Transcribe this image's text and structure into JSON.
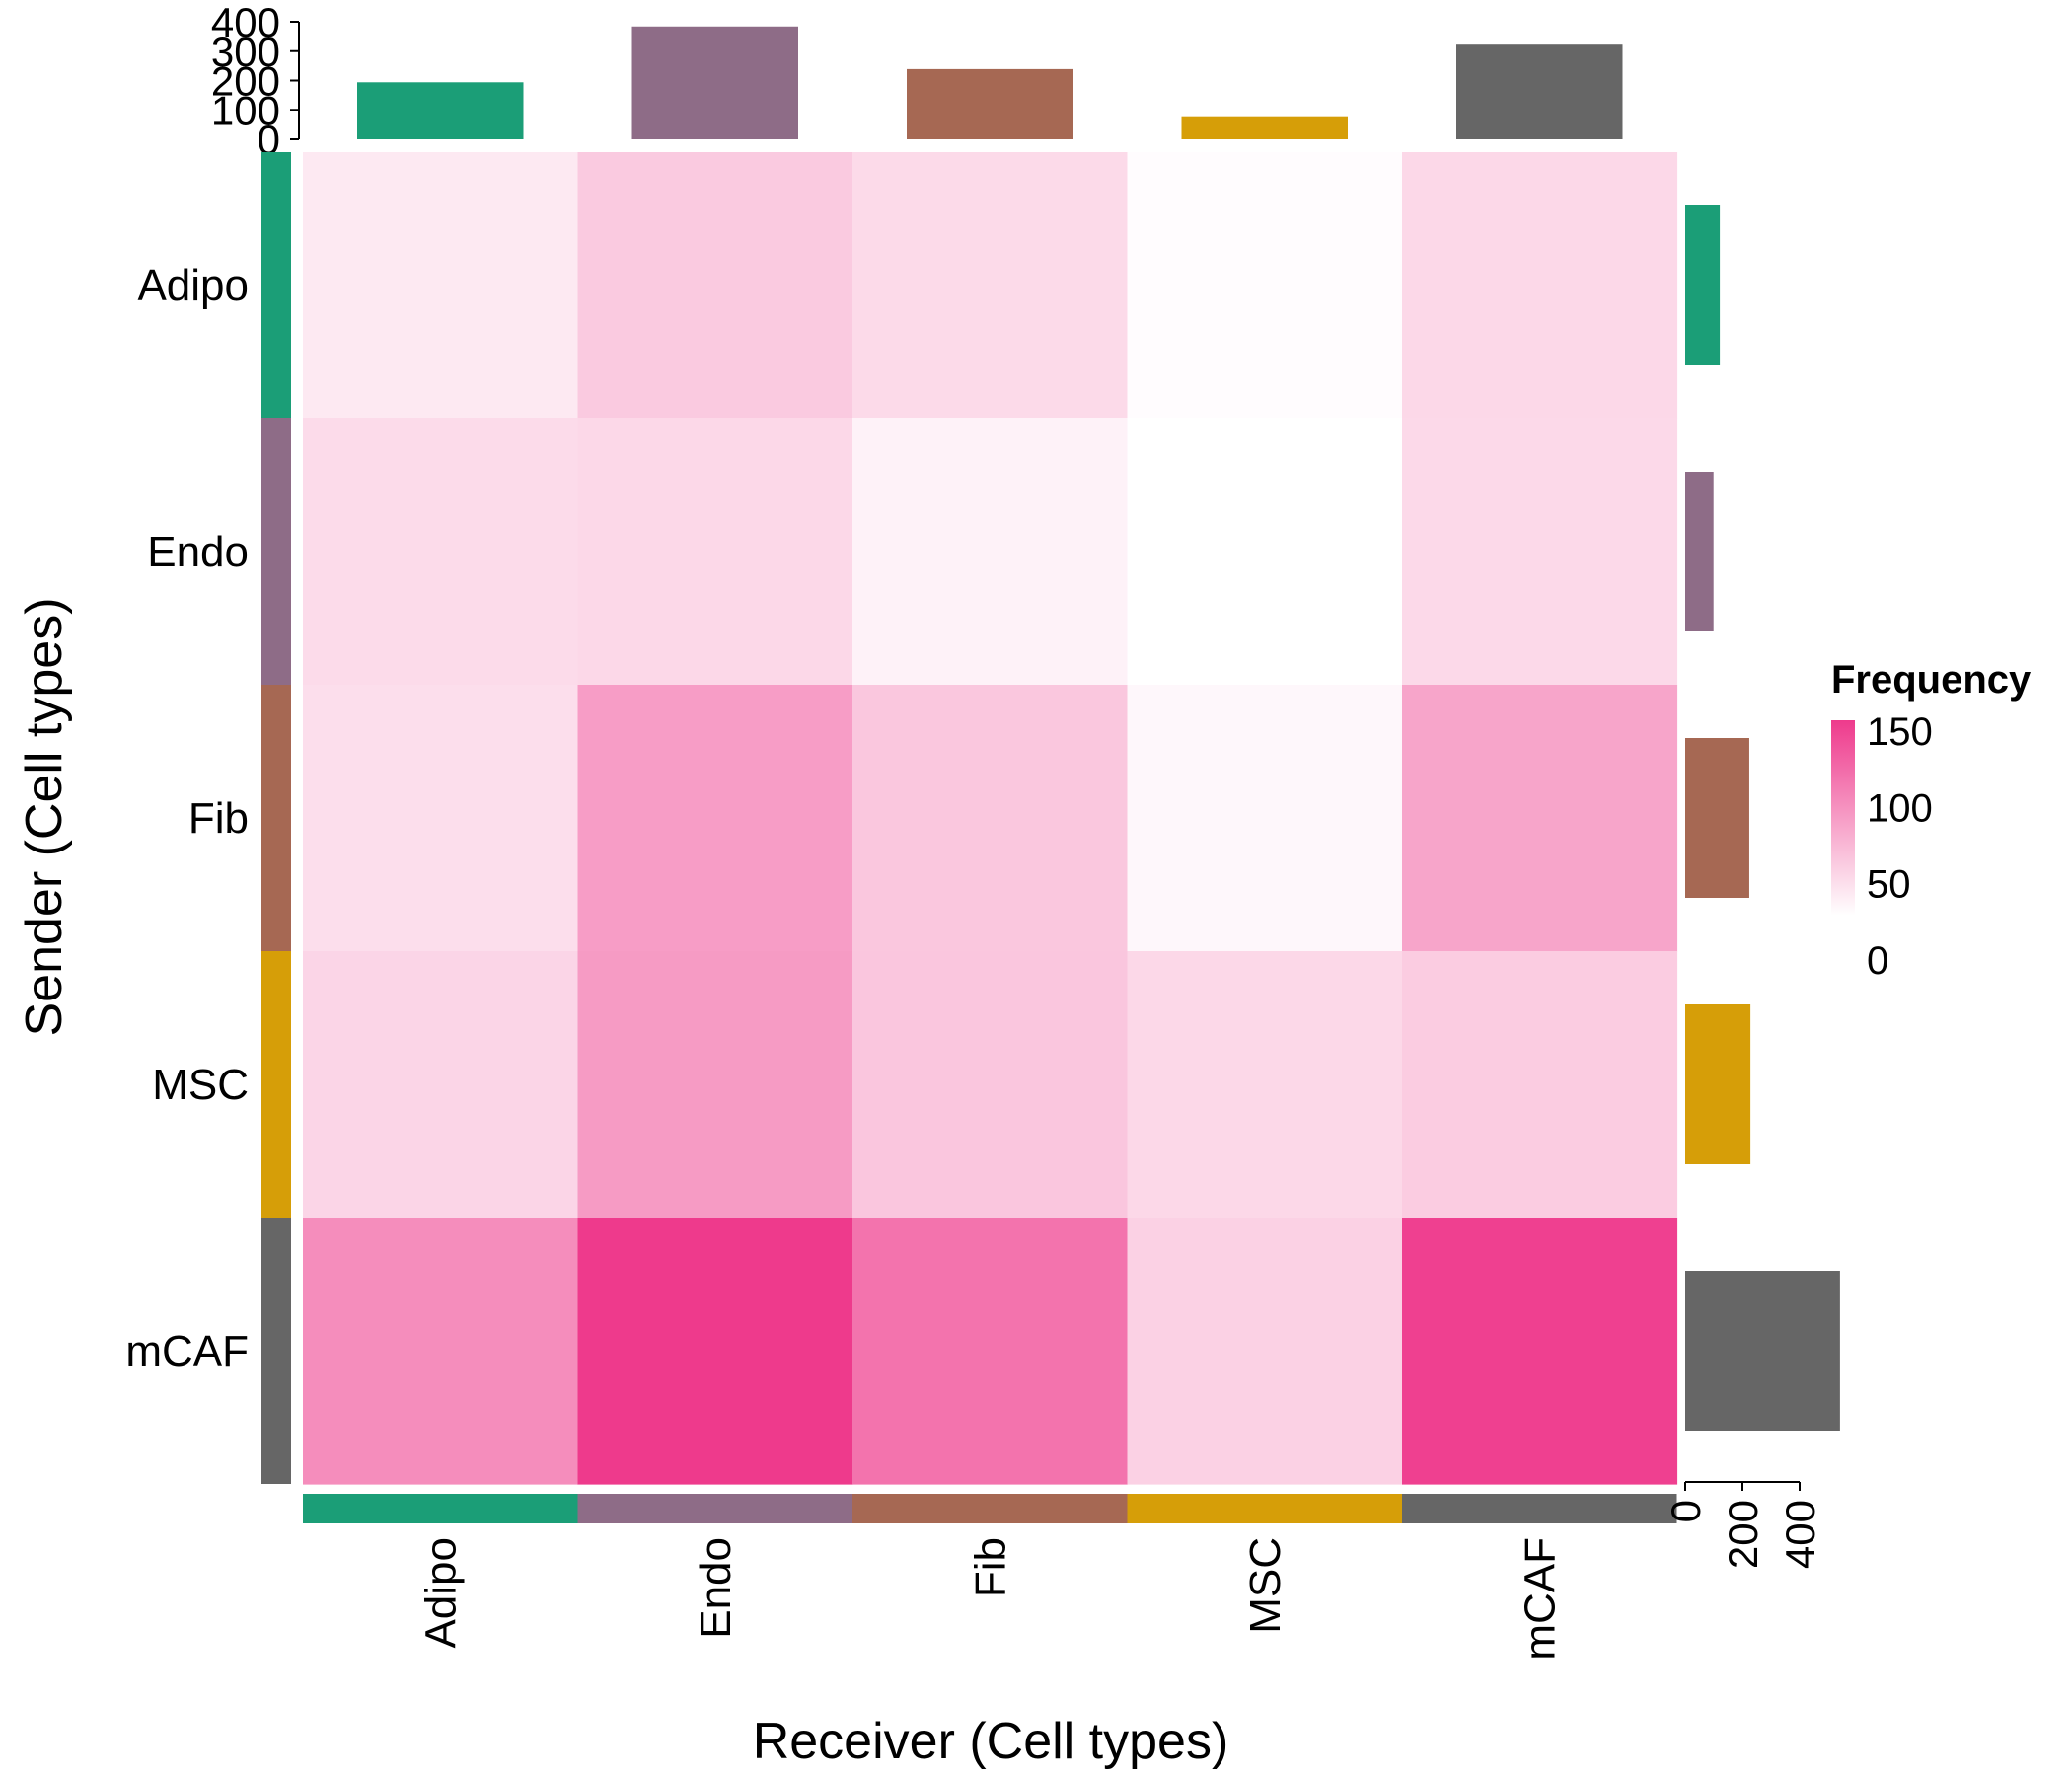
{
  "chart_data": {
    "type": "heatmap",
    "xlabel": "Receiver (Cell types)",
    "ylabel": "Sender (Cell types)",
    "rows": [
      "Adipo",
      "Endo",
      "Fib",
      "MSC",
      "mCAF"
    ],
    "cols": [
      "Adipo",
      "Endo",
      "Fib",
      "MSC",
      "mCAF"
    ],
    "values": [
      [
        17,
        42,
        29,
        2,
        31
      ],
      [
        28,
        31,
        10,
        0,
        30
      ],
      [
        26,
        77,
        44,
        6,
        71
      ],
      [
        33,
        79,
        45,
        31,
        40
      ],
      [
        90,
        155,
        110,
        36,
        150
      ]
    ],
    "group_colors": [
      "#1b9e77",
      "#8e6c87",
      "#a66853",
      "#d69e08",
      "#666666"
    ],
    "col_totals": {
      "values": [
        194,
        384,
        239,
        75,
        322
      ],
      "ticks": [
        "0",
        "100",
        "200",
        "300",
        "400"
      ],
      "range": [
        0,
        400
      ]
    },
    "row_totals": {
      "values": [
        121,
        99,
        224,
        228,
        541
      ],
      "ticks": [
        "0",
        "200",
        "400"
      ],
      "range": [
        0,
        400
      ]
    },
    "legend": {
      "title": "Frequency",
      "ticks": [
        "150",
        "100",
        "50",
        "0"
      ],
      "range": [
        0,
        155
      ],
      "colors": [
        "#ffffff",
        "#ee3a8c"
      ]
    }
  }
}
